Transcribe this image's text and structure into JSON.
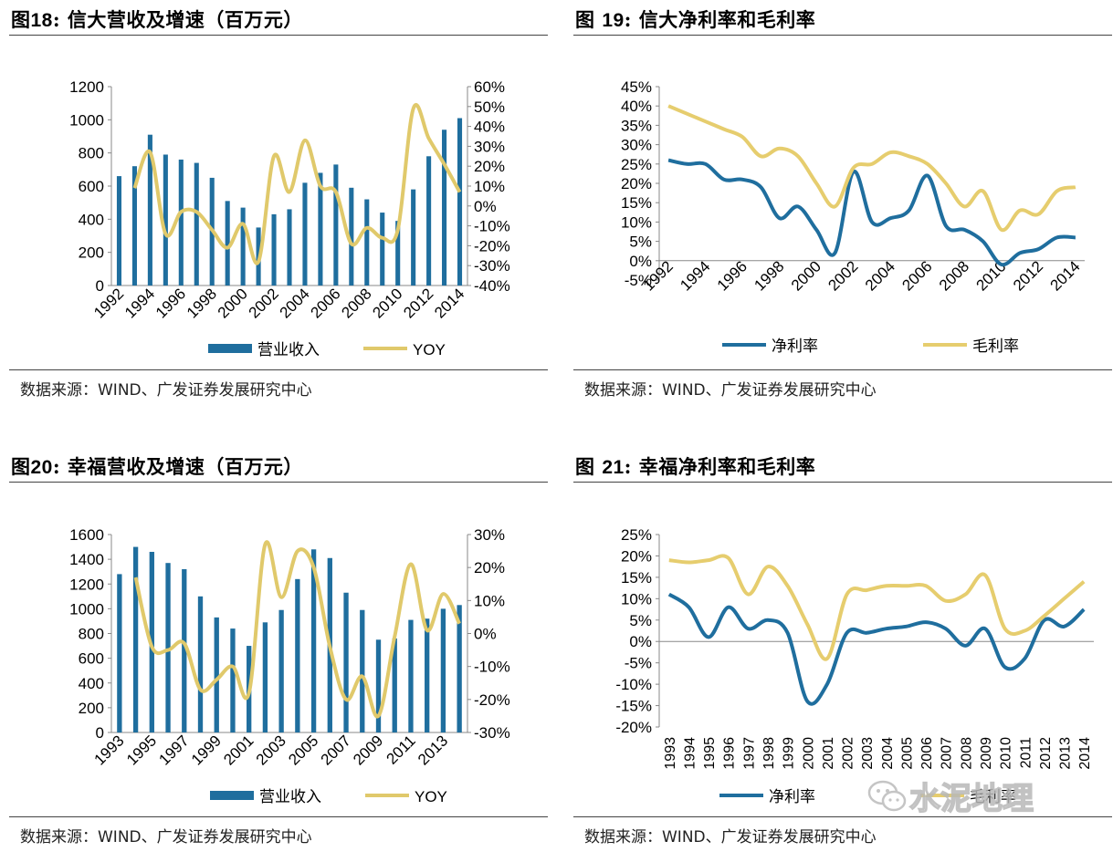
{
  "source_text": "数据来源：WIND、广发证券发展研究中心",
  "watermark_text": "水泥地理",
  "colors": {
    "bar": "#1F6E9E",
    "yoy": "#E0C96B",
    "net": "#1F6E9E",
    "gross": "#E6CD6E"
  },
  "panels": [
    {
      "title_prefix": "图",
      "title_num": "18",
      "title_text": ": 信大营收及增速（百万元）"
    },
    {
      "title_prefix": "图 ",
      "title_num": "19",
      "title_text": ": 信大净利率和毛利率"
    },
    {
      "title_prefix": "图",
      "title_num": "20",
      "title_text": ": 幸福营收及增速（百万元）"
    },
    {
      "title_prefix": "图 ",
      "title_num": "21",
      "title_text": ": 幸福净利率和毛利率"
    }
  ],
  "chart_data": [
    {
      "type": "bar",
      "categories": [
        "1992",
        "1993",
        "1994",
        "1995",
        "1996",
        "1997",
        "1998",
        "1999",
        "2000",
        "2001",
        "2002",
        "2003",
        "2004",
        "2005",
        "2006",
        "2007",
        "2008",
        "2009",
        "2010",
        "2011",
        "2012",
        "2013",
        "2014"
      ],
      "x_tick_labels": [
        "1992",
        "1994",
        "1996",
        "1998",
        "2000",
        "2002",
        "2004",
        "2006",
        "2008",
        "2010",
        "2012",
        "2014"
      ],
      "series": [
        {
          "name": "营业收入",
          "type": "bar",
          "axis": "left",
          "values": [
            660,
            720,
            910,
            790,
            760,
            740,
            650,
            510,
            470,
            350,
            430,
            460,
            620,
            680,
            730,
            590,
            520,
            440,
            390,
            580,
            780,
            940,
            1010
          ]
        },
        {
          "name": "YOY",
          "type": "line",
          "axis": "right",
          "values": [
            null,
            0.09,
            0.27,
            -0.14,
            -0.03,
            -0.03,
            -0.12,
            -0.21,
            -0.09,
            -0.28,
            0.25,
            0.07,
            0.33,
            0.1,
            0.07,
            -0.19,
            -0.11,
            -0.16,
            -0.12,
            0.49,
            0.34,
            0.21,
            0.07
          ]
        }
      ],
      "y_left": {
        "min": 0,
        "max": 1200,
        "ticks": [
          "0",
          "200",
          "400",
          "600",
          "800",
          "1000",
          "1200"
        ]
      },
      "y_right": {
        "min": -0.4,
        "max": 0.6,
        "ticks": [
          "-40%",
          "-30%",
          "-20%",
          "-10%",
          "0%",
          "10%",
          "20%",
          "30%",
          "40%",
          "50%",
          "60%"
        ]
      },
      "legend": "bottom"
    },
    {
      "type": "line",
      "categories": [
        "1992",
        "1993",
        "1994",
        "1995",
        "1996",
        "1997",
        "1998",
        "1999",
        "2000",
        "2001",
        "2002",
        "2003",
        "2004",
        "2005",
        "2006",
        "2007",
        "2008",
        "2009",
        "2010",
        "2011",
        "2012",
        "2013",
        "2014"
      ],
      "x_tick_labels": [
        "1992",
        "1994",
        "1996",
        "1998",
        "2000",
        "2002",
        "2004",
        "2006",
        "2008",
        "2010",
        "2012",
        "2014"
      ],
      "series": [
        {
          "name": "净利率",
          "values": [
            0.26,
            0.25,
            0.25,
            0.21,
            0.21,
            0.19,
            0.11,
            0.14,
            0.08,
            0.02,
            0.23,
            0.1,
            0.11,
            0.13,
            0.22,
            0.09,
            0.08,
            0.05,
            -0.01,
            0.02,
            0.03,
            0.06,
            0.06
          ]
        },
        {
          "name": "毛利率",
          "values": [
            0.4,
            0.38,
            0.36,
            0.34,
            0.32,
            0.27,
            0.29,
            0.27,
            0.2,
            0.14,
            0.24,
            0.25,
            0.28,
            0.27,
            0.25,
            0.2,
            0.14,
            0.18,
            0.08,
            0.13,
            0.12,
            0.18,
            0.19
          ]
        }
      ],
      "y": {
        "min": -0.05,
        "max": 0.45,
        "ticks": [
          "-5%",
          "0%",
          "5%",
          "10%",
          "15%",
          "20%",
          "25%",
          "30%",
          "35%",
          "40%",
          "45%"
        ]
      },
      "legend": "bottom"
    },
    {
      "type": "bar",
      "categories": [
        "1993",
        "1994",
        "1995",
        "1996",
        "1997",
        "1998",
        "1999",
        "2000",
        "2001",
        "2002",
        "2003",
        "2004",
        "2005",
        "2006",
        "2007",
        "2008",
        "2009",
        "2010",
        "2011",
        "2012",
        "2013",
        "2014"
      ],
      "x_tick_labels": [
        "1993",
        "1995",
        "1997",
        "1999",
        "2001",
        "2003",
        "2005",
        "2007",
        "2009",
        "2011",
        "2013"
      ],
      "series": [
        {
          "name": "营业收入",
          "type": "bar",
          "axis": "left",
          "values": [
            1280,
            1500,
            1460,
            1370,
            1320,
            1100,
            930,
            840,
            700,
            890,
            990,
            1240,
            1480,
            1410,
            1130,
            990,
            750,
            760,
            910,
            920,
            1000,
            1030
          ]
        },
        {
          "name": "YOY",
          "type": "line",
          "axis": "right",
          "values": [
            null,
            0.17,
            -0.04,
            -0.05,
            -0.03,
            -0.17,
            -0.14,
            -0.1,
            -0.18,
            0.27,
            0.11,
            0.25,
            0.2,
            -0.04,
            -0.2,
            -0.13,
            -0.25,
            -0.01,
            0.21,
            0.01,
            0.12,
            0.03
          ]
        }
      ],
      "y_left": {
        "min": 0,
        "max": 1600,
        "ticks": [
          "0",
          "200",
          "400",
          "600",
          "800",
          "1000",
          "1200",
          "1400",
          "1600"
        ]
      },
      "y_right": {
        "min": -0.3,
        "max": 0.3,
        "ticks": [
          "-30%",
          "-20%",
          "-10%",
          "0%",
          "10%",
          "20%",
          "30%"
        ]
      },
      "legend": "bottom"
    },
    {
      "type": "line",
      "categories": [
        "1993",
        "1994",
        "1995",
        "1996",
        "1997",
        "1998",
        "1999",
        "2000",
        "2001",
        "2002",
        "2003",
        "2004",
        "2005",
        "2006",
        "2007",
        "2008",
        "2009",
        "2010",
        "2011",
        "2012",
        "2013",
        "2014"
      ],
      "x_tick_labels": [
        "1993",
        "1994",
        "1995",
        "1996",
        "1997",
        "1998",
        "1999",
        "2000",
        "2001",
        "2002",
        "2003",
        "2004",
        "2005",
        "2006",
        "2007",
        "2008",
        "2009",
        "2010",
        "2011",
        "2012",
        "2013",
        "2014"
      ],
      "series": [
        {
          "name": "净利率",
          "values": [
            0.11,
            0.08,
            0.01,
            0.08,
            0.03,
            0.05,
            0.02,
            -0.14,
            -0.1,
            0.02,
            0.02,
            0.03,
            0.035,
            0.045,
            0.03,
            -0.01,
            0.03,
            -0.06,
            -0.04,
            0.05,
            0.035,
            0.075
          ]
        },
        {
          "name": "毛利率",
          "values": [
            0.19,
            0.185,
            0.19,
            0.195,
            0.11,
            0.175,
            0.13,
            0.04,
            -0.04,
            0.11,
            0.12,
            0.13,
            0.13,
            0.13,
            0.095,
            0.11,
            0.155,
            0.03,
            0.025,
            0.06,
            0.1,
            0.14
          ]
        }
      ],
      "y": {
        "min": -0.2,
        "max": 0.25,
        "ticks": [
          "-20%",
          "-15%",
          "-10%",
          "-5%",
          "0%",
          "5%",
          "10%",
          "15%",
          "20%",
          "25%"
        ]
      },
      "legend": "bottom"
    }
  ]
}
